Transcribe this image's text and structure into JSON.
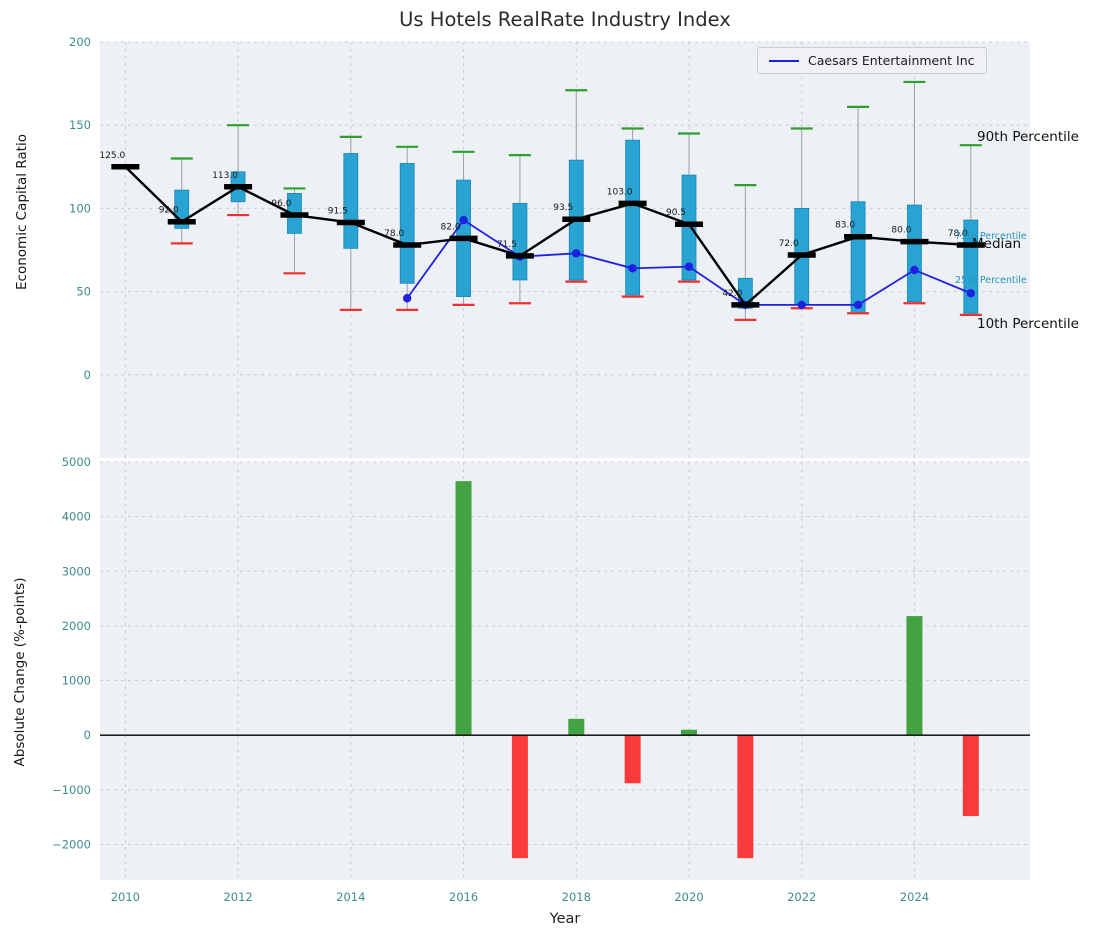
{
  "chart_data": [
    {
      "type": "boxplot+line",
      "title": "Us Hotels RealRate Industry Index",
      "ylabel": "Economic Capital Ratio",
      "xlim": [
        2009.55,
        2026.05
      ],
      "ylim": [
        -50,
        200
      ],
      "yticks": [
        0,
        50,
        100,
        150,
        200
      ],
      "xticks": [
        2010,
        2012,
        2014,
        2016,
        2018,
        2020,
        2022,
        2024
      ],
      "grid": true,
      "legend_position": "upper right",
      "years": [
        2010,
        2011,
        2012,
        2013,
        2014,
        2015,
        2016,
        2017,
        2018,
        2019,
        2020,
        2021,
        2022,
        2023,
        2024,
        2025
      ],
      "median": [
        125.0,
        92.0,
        113.0,
        96.0,
        91.5,
        78.0,
        82.0,
        71.5,
        93.5,
        103.0,
        90.5,
        42.0,
        72.0,
        83.0,
        80.0,
        78.0
      ],
      "p90": [
        null,
        130,
        150,
        112,
        143,
        137,
        134,
        132,
        171,
        148,
        145,
        114,
        148,
        161,
        176,
        138
      ],
      "p75": [
        null,
        111,
        122,
        109,
        133,
        127,
        117,
        103,
        129,
        141,
        120,
        58,
        100,
        104,
        102,
        93
      ],
      "p25": [
        null,
        88,
        104,
        85,
        76,
        55,
        47,
        57,
        57,
        48,
        57,
        40,
        42,
        37,
        44,
        37
      ],
      "p10": [
        null,
        79,
        96,
        61,
        39,
        39,
        42,
        43,
        56,
        47,
        56,
        33,
        40,
        37,
        43,
        36
      ],
      "series": [
        {
          "name": "Caesars Entertainment Inc",
          "x": [
            2015,
            2016,
            2017,
            2018,
            2019,
            2020,
            2021,
            2022,
            2023,
            2024,
            2025
          ],
          "values": [
            46,
            93,
            71,
            73,
            64,
            65,
            42,
            42,
            42,
            63,
            49
          ]
        }
      ],
      "annotations": [
        {
          "text": "90th Percentile"
        },
        {
          "text": "75th Percentile"
        },
        {
          "text": "Median"
        },
        {
          "text": "25th Percentile"
        },
        {
          "text": "10th Percentile"
        }
      ]
    },
    {
      "type": "bar",
      "ylabel": "Absolute Change (%-points)",
      "xlabel": "Year",
      "xlim": [
        2009.55,
        2026.05
      ],
      "ylim": [
        -2650,
        5000
      ],
      "yticks": [
        -2000,
        -1000,
        0,
        1000,
        2000,
        3000,
        4000,
        5000
      ],
      "xticks": [
        2010,
        2012,
        2014,
        2016,
        2018,
        2020,
        2022,
        2024
      ],
      "grid": true,
      "years": [
        2010,
        2011,
        2012,
        2013,
        2014,
        2015,
        2016,
        2017,
        2018,
        2019,
        2020,
        2021,
        2022,
        2023,
        2024,
        2025
      ],
      "values": [
        0,
        0,
        0,
        0,
        0,
        0,
        4650,
        -2250,
        300,
        -880,
        100,
        -2250,
        0,
        0,
        2180,
        -1480
      ]
    }
  ],
  "colors": {
    "plot_bg": "#edf0f4",
    "grid": "#c9ced8",
    "tick_label": "#3d8c8c",
    "box": "#29a3d1",
    "box_edge": "#1b86b4",
    "whisker": "#9aa0a6",
    "p90_cap": "#2f9e2f",
    "p10_cap": "#f03030",
    "median": "#000000",
    "caesars": "#2020e0",
    "bar_positive": "#43a343",
    "bar_negative": "#fb3b3b",
    "percentile_small_text": "#2596be",
    "zero_line": "#000000"
  }
}
